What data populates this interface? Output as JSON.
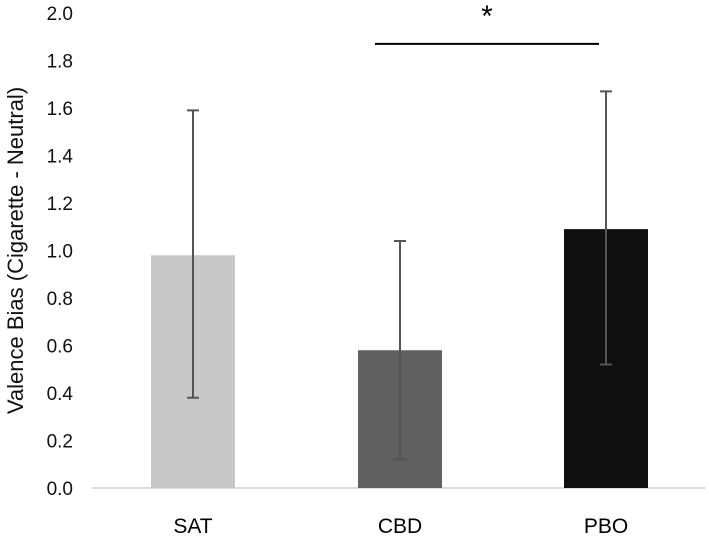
{
  "chart_data": {
    "type": "bar",
    "title": "",
    "xlabel": "",
    "ylabel": "Valence Bias (Cigarette - Neutral)",
    "ylim": [
      0,
      2.0
    ],
    "yticks": [
      "0.0",
      "0.2",
      "0.4",
      "0.6",
      "0.8",
      "1.0",
      "1.2",
      "1.4",
      "1.6",
      "1.8",
      "2.0"
    ],
    "categories": [
      "SAT",
      "CBD",
      "PBO"
    ],
    "values": [
      0.98,
      0.58,
      1.09
    ],
    "error_low": [
      0.38,
      0.12,
      0.52
    ],
    "error_high": [
      1.59,
      1.04,
      1.67
    ],
    "colors": [
      "#c8c8c8",
      "#606060",
      "#0f0f0f"
    ],
    "grid": false,
    "legend": "none",
    "significance": {
      "from": "CBD",
      "to": "PBO",
      "y": 1.87,
      "label": "*"
    }
  }
}
